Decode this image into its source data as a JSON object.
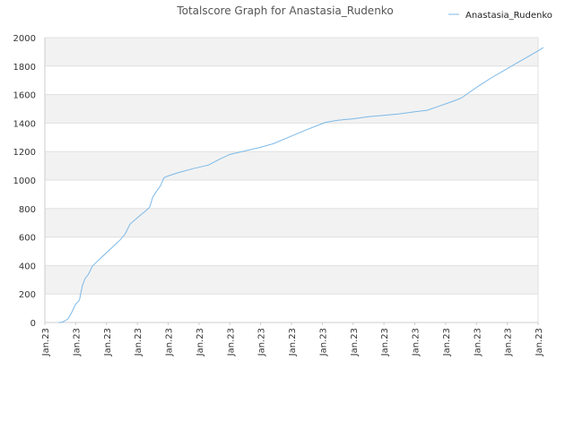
{
  "chart_data": {
    "type": "line",
    "title": "Totalscore Graph for Anastasia_Rudenko",
    "xlabel": "",
    "ylabel": "",
    "ylim": [
      0,
      2000
    ],
    "y_ticks": [
      "0",
      "200",
      "400",
      "600",
      "800",
      "1000",
      "1200",
      "1400",
      "1600",
      "1800",
      "2000"
    ],
    "x_ticks": [
      "Jan.23",
      "Jan.23",
      "Jan.23",
      "Jan.23",
      "Jan.23",
      "Jan.23",
      "Jan.23",
      "Jan.23",
      "Jan.23",
      "Jan.23",
      "Jan.23",
      "Jan.23",
      "Jan.23",
      "Jan.23",
      "Jan.23",
      "Jan.23",
      "Jan.23"
    ],
    "x_range": [
      0,
      16
    ],
    "grid": true,
    "legend_position": "top-right",
    "colors": {
      "line": "#7cb9e8",
      "band": "#f2f2f2",
      "grid": "#e0e0e0",
      "axis": "#cccccc"
    },
    "series": [
      {
        "name": "Anastasia_Rudenko",
        "points": [
          [
            0.44,
            0
          ],
          [
            0.55,
            2
          ],
          [
            0.63,
            10
          ],
          [
            0.75,
            25
          ],
          [
            0.87,
            70
          ],
          [
            1.0,
            130
          ],
          [
            1.1,
            150
          ],
          [
            1.13,
            165
          ],
          [
            1.16,
            200
          ],
          [
            1.22,
            260
          ],
          [
            1.31,
            310
          ],
          [
            1.42,
            340
          ],
          [
            1.54,
            395
          ],
          [
            1.66,
            420
          ],
          [
            1.85,
            460
          ],
          [
            2.15,
            520
          ],
          [
            2.44,
            580
          ],
          [
            2.6,
            620
          ],
          [
            2.76,
            690
          ],
          [
            2.92,
            720
          ],
          [
            3.08,
            750
          ],
          [
            3.25,
            780
          ],
          [
            3.4,
            810
          ],
          [
            3.5,
            880
          ],
          [
            3.62,
            920
          ],
          [
            3.75,
            960
          ],
          [
            3.86,
            1015
          ],
          [
            3.95,
            1025
          ],
          [
            4.3,
            1050
          ],
          [
            4.8,
            1080
          ],
          [
            5.3,
            1105
          ],
          [
            5.7,
            1150
          ],
          [
            6.0,
            1180
          ],
          [
            6.5,
            1205
          ],
          [
            7.0,
            1230
          ],
          [
            7.4,
            1255
          ],
          [
            7.9,
            1300
          ],
          [
            8.4,
            1345
          ],
          [
            8.8,
            1380
          ],
          [
            9.1,
            1405
          ],
          [
            9.5,
            1420
          ],
          [
            10.0,
            1430
          ],
          [
            10.5,
            1445
          ],
          [
            11.0,
            1455
          ],
          [
            11.5,
            1465
          ],
          [
            12.0,
            1480
          ],
          [
            12.4,
            1490
          ],
          [
            12.8,
            1520
          ],
          [
            13.2,
            1550
          ],
          [
            13.5,
            1575
          ],
          [
            13.8,
            1620
          ],
          [
            14.1,
            1665
          ],
          [
            14.5,
            1720
          ],
          [
            14.9,
            1770
          ],
          [
            15.3,
            1820
          ],
          [
            15.7,
            1870
          ],
          [
            16.1,
            1920
          ],
          [
            16.17,
            1930
          ]
        ]
      }
    ]
  }
}
